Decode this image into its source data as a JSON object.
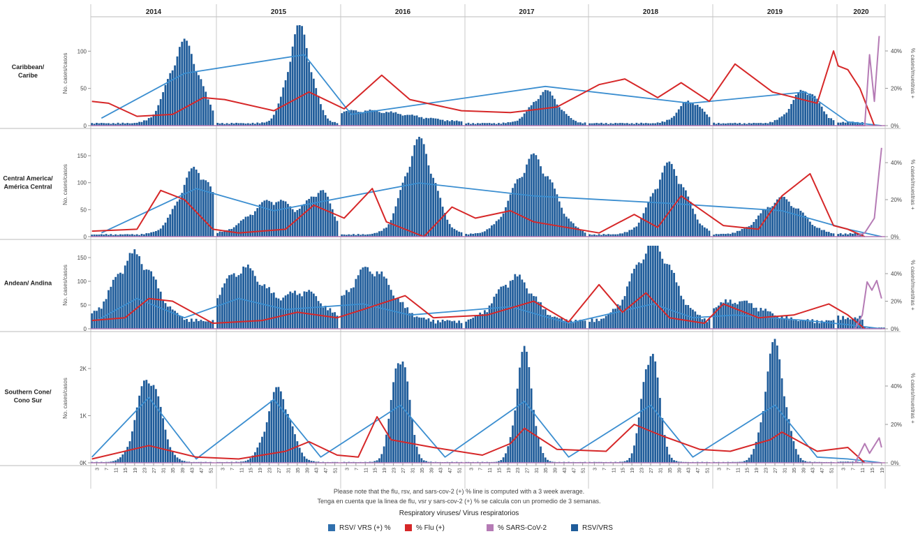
{
  "chart_data": {
    "type": "bar",
    "years": [
      "2014",
      "2015",
      "2016",
      "2017",
      "2018",
      "2019",
      "2020"
    ],
    "week_tick_labels": [
      "3",
      "7",
      "11",
      "15",
      "19",
      "23",
      "27",
      "31",
      "35",
      "39",
      "43",
      "47",
      "51"
    ],
    "week_tick_labels_2020": [
      "3",
      "7",
      "11",
      "15",
      "19"
    ],
    "left_axis_label": "No. cases/casos",
    "right_axis_label": "% cases/muestras +",
    "legend_title": "Respiratory viruses/ Virus respiratorios",
    "legend": [
      {
        "name": "RSV/ VRS (+) %",
        "color": "#2f6fad"
      },
      {
        "name": "% Flu (+)",
        "color": "#d62728"
      },
      {
        "name": "% SARS-CoV-2",
        "color": "#b57bb5"
      },
      {
        "name": "RSV/VRS",
        "color": "#1f5c9a"
      }
    ],
    "colors": {
      "bars": "#1f5c9a",
      "rsv_pct": "#3b8ed0",
      "flu": "#d62728",
      "sars": "#b57bb5"
    },
    "notes": [
      "Please note that the flu, rsv, and sars-cov-2 (+) % line is computed with a 3 week average.",
      "Tenga en cuenta que la linea de flu, vsr y sars-cov-2 (+) % se calcula con un promedio de 3 semanas."
    ],
    "panels": [
      {
        "label": [
          "Caribbean/",
          "Caribe"
        ],
        "y_ticks": [
          "0",
          "50",
          "100"
        ],
        "y_tick_values": [
          0,
          50,
          100
        ],
        "y_max": 135,
        "pct_ticks": [
          "0%",
          "20%",
          "40%"
        ],
        "bar_peaks": [
          {
            "year": 0,
            "week": 40,
            "value": 113,
            "width": 9
          },
          {
            "year": 1,
            "week": 36,
            "value": 135,
            "width": 7
          },
          {
            "year": 2,
            "week": 10,
            "value": 18,
            "width": 30
          },
          {
            "year": 3,
            "week": 35,
            "value": 45,
            "width": 8
          },
          {
            "year": 4,
            "week": 44,
            "value": 32,
            "width": 7
          },
          {
            "year": 5,
            "week": 40,
            "value": 48,
            "width": 8
          }
        ],
        "bar_base": 4,
        "rsv_pct": [
          [
            0,
            5,
            4
          ],
          [
            0,
            40,
            28
          ],
          [
            1,
            38,
            38
          ],
          [
            2,
            5,
            6
          ],
          [
            3,
            35,
            21
          ],
          [
            4,
            44,
            12
          ],
          [
            5,
            40,
            18
          ],
          [
            6,
            5,
            2
          ],
          [
            6,
            19,
            0
          ]
        ],
        "flu_pct": [
          [
            0,
            1,
            13
          ],
          [
            0,
            8,
            12
          ],
          [
            0,
            20,
            5
          ],
          [
            0,
            35,
            6
          ],
          [
            0,
            48,
            15
          ],
          [
            1,
            4,
            14
          ],
          [
            1,
            25,
            8
          ],
          [
            1,
            40,
            18
          ],
          [
            2,
            2,
            9
          ],
          [
            2,
            18,
            27
          ],
          [
            2,
            30,
            14
          ],
          [
            2,
            52,
            8
          ],
          [
            3,
            20,
            7
          ],
          [
            3,
            40,
            10
          ],
          [
            4,
            5,
            22
          ],
          [
            4,
            16,
            25
          ],
          [
            4,
            30,
            15
          ],
          [
            4,
            40,
            23
          ],
          [
            4,
            52,
            13
          ],
          [
            5,
            10,
            33
          ],
          [
            5,
            26,
            18
          ],
          [
            5,
            45,
            12
          ],
          [
            5,
            52,
            40
          ],
          [
            6,
            1,
            32
          ],
          [
            6,
            5,
            30
          ],
          [
            6,
            10,
            20
          ],
          [
            6,
            16,
            0
          ]
        ],
        "sars_pct": [
          [
            6,
            8,
            0
          ],
          [
            6,
            12,
            0
          ],
          [
            6,
            14,
            38
          ],
          [
            6,
            16,
            13
          ],
          [
            6,
            18,
            48
          ]
        ]
      },
      {
        "label": [
          "Central America/",
          "América Central"
        ],
        "y_ticks": [
          "0",
          "50",
          "100",
          "150"
        ],
        "y_tick_values": [
          0,
          50,
          100,
          150
        ],
        "y_max": 185,
        "pct_ticks": [
          "0%",
          "20%",
          "40%"
        ],
        "bar_peaks": [
          {
            "year": 0,
            "week": 45,
            "value": 128,
            "width": 10
          },
          {
            "year": 1,
            "week": 25,
            "value": 68,
            "width": 14
          },
          {
            "year": 1,
            "week": 45,
            "value": 78,
            "width": 7
          },
          {
            "year": 2,
            "week": 34,
            "value": 182,
            "width": 9
          },
          {
            "year": 3,
            "week": 30,
            "value": 150,
            "width": 12
          },
          {
            "year": 4,
            "week": 35,
            "value": 135,
            "width": 10
          },
          {
            "year": 5,
            "week": 30,
            "value": 70,
            "width": 12
          }
        ],
        "bar_base": 5,
        "rsv_pct": [
          [
            0,
            5,
            2
          ],
          [
            0,
            45,
            26
          ],
          [
            1,
            25,
            14
          ],
          [
            2,
            34,
            29
          ],
          [
            3,
            30,
            22
          ],
          [
            4,
            35,
            18
          ],
          [
            5,
            30,
            14
          ],
          [
            6,
            5,
            4
          ],
          [
            6,
            19,
            0
          ]
        ],
        "flu_pct": [
          [
            0,
            1,
            3
          ],
          [
            0,
            20,
            4
          ],
          [
            0,
            30,
            25
          ],
          [
            0,
            40,
            20
          ],
          [
            0,
            52,
            4
          ],
          [
            1,
            10,
            2
          ],
          [
            1,
            30,
            4
          ],
          [
            1,
            42,
            17
          ],
          [
            2,
            2,
            10
          ],
          [
            2,
            14,
            26
          ],
          [
            2,
            20,
            8
          ],
          [
            2,
            36,
            0
          ],
          [
            2,
            48,
            16
          ],
          [
            3,
            5,
            10
          ],
          [
            3,
            20,
            14
          ],
          [
            3,
            30,
            8
          ],
          [
            4,
            5,
            2
          ],
          [
            4,
            20,
            12
          ],
          [
            4,
            30,
            5
          ],
          [
            4,
            40,
            22
          ],
          [
            5,
            5,
            6
          ],
          [
            5,
            20,
            4
          ],
          [
            5,
            30,
            22
          ],
          [
            5,
            42,
            34
          ],
          [
            5,
            52,
            6
          ],
          [
            6,
            5,
            4
          ],
          [
            6,
            12,
            0
          ]
        ],
        "sars_pct": [
          [
            6,
            8,
            0
          ],
          [
            6,
            12,
            2
          ],
          [
            6,
            16,
            10
          ],
          [
            6,
            19,
            48
          ]
        ]
      },
      {
        "label": [
          "Andean/ Andina"
        ],
        "y_ticks": [
          "0",
          "50",
          "100",
          "150"
        ],
        "y_tick_values": [
          0,
          50,
          100,
          150
        ],
        "y_max": 175,
        "pct_ticks": [
          "0%",
          "20%",
          "40%"
        ],
        "bar_peaks": [
          {
            "year": 0,
            "week": 19,
            "value": 148,
            "width": 12
          },
          {
            "year": 1,
            "week": 12,
            "value": 118,
            "width": 13
          },
          {
            "year": 1,
            "week": 38,
            "value": 65,
            "width": 11
          },
          {
            "year": 2,
            "week": 13,
            "value": 118,
            "width": 13
          },
          {
            "year": 3,
            "week": 22,
            "value": 98,
            "width": 11
          },
          {
            "year": 4,
            "week": 28,
            "value": 172,
            "width": 12
          },
          {
            "year": 5,
            "week": 10,
            "value": 45,
            "width": 16
          }
        ],
        "bar_base": 20,
        "rsv_pct": [
          [
            0,
            3,
            6
          ],
          [
            0,
            20,
            22
          ],
          [
            0,
            40,
            8
          ],
          [
            1,
            10,
            22
          ],
          [
            1,
            30,
            14
          ],
          [
            2,
            10,
            18
          ],
          [
            2,
            30,
            10
          ],
          [
            3,
            20,
            16
          ],
          [
            3,
            45,
            4
          ],
          [
            4,
            28,
            18
          ],
          [
            4,
            45,
            8
          ],
          [
            5,
            10,
            10
          ],
          [
            5,
            40,
            6
          ],
          [
            6,
            5,
            3
          ],
          [
            6,
            19,
            0
          ]
        ],
        "flu_pct": [
          [
            0,
            1,
            6
          ],
          [
            0,
            15,
            8
          ],
          [
            0,
            25,
            22
          ],
          [
            0,
            35,
            20
          ],
          [
            0,
            52,
            4
          ],
          [
            1,
            20,
            6
          ],
          [
            1,
            35,
            12
          ],
          [
            1,
            52,
            8
          ],
          [
            2,
            10,
            14
          ],
          [
            2,
            28,
            24
          ],
          [
            2,
            40,
            8
          ],
          [
            3,
            10,
            10
          ],
          [
            3,
            30,
            20
          ],
          [
            3,
            45,
            5
          ],
          [
            4,
            5,
            32
          ],
          [
            4,
            15,
            12
          ],
          [
            4,
            25,
            26
          ],
          [
            4,
            35,
            8
          ],
          [
            4,
            50,
            4
          ],
          [
            5,
            5,
            18
          ],
          [
            5,
            20,
            8
          ],
          [
            5,
            35,
            10
          ],
          [
            5,
            50,
            18
          ],
          [
            6,
            5,
            10
          ],
          [
            6,
            12,
            0
          ]
        ],
        "sars_pct": [
          [
            6,
            8,
            0
          ],
          [
            6,
            11,
            10
          ],
          [
            6,
            13,
            34
          ],
          [
            6,
            15,
            28
          ],
          [
            6,
            17,
            35
          ],
          [
            6,
            19,
            22
          ]
        ]
      },
      {
        "label": [
          "Southern Cone/",
          "Cono Sur"
        ],
        "y_ticks": [
          "0K",
          "1K",
          "2K"
        ],
        "y_tick_values": [
          0,
          1000,
          2000
        ],
        "y_max": 2650,
        "pct_ticks": [
          "0%",
          "20%",
          "40%"
        ],
        "bar_peaks": [
          {
            "year": 0,
            "week": 25,
            "value": 1950,
            "width": 7
          },
          {
            "year": 1,
            "week": 27,
            "value": 1620,
            "width": 7
          },
          {
            "year": 2,
            "week": 26,
            "value": 2500,
            "width": 5
          },
          {
            "year": 3,
            "week": 26,
            "value": 2460,
            "width": 5
          },
          {
            "year": 4,
            "week": 27,
            "value": 2580,
            "width": 5
          },
          {
            "year": 5,
            "week": 27,
            "value": 2620,
            "width": 6
          }
        ],
        "bar_base": 20,
        "rsv_pct": [
          [
            0,
            1,
            3
          ],
          [
            0,
            25,
            34
          ],
          [
            0,
            45,
            2
          ],
          [
            1,
            25,
            33
          ],
          [
            1,
            45,
            3
          ],
          [
            2,
            26,
            30
          ],
          [
            2,
            45,
            3
          ],
          [
            3,
            26,
            32
          ],
          [
            3,
            45,
            3
          ],
          [
            4,
            27,
            30
          ],
          [
            4,
            45,
            3
          ],
          [
            5,
            27,
            30
          ],
          [
            5,
            45,
            3
          ],
          [
            6,
            5,
            2
          ],
          [
            6,
            19,
            0
          ]
        ],
        "flu_pct": [
          [
            0,
            1,
            2
          ],
          [
            0,
            25,
            9
          ],
          [
            0,
            45,
            3
          ],
          [
            1,
            10,
            2
          ],
          [
            1,
            30,
            6
          ],
          [
            1,
            40,
            11
          ],
          [
            1,
            52,
            4
          ],
          [
            2,
            8,
            3
          ],
          [
            2,
            16,
            24
          ],
          [
            2,
            22,
            12
          ],
          [
            2,
            40,
            8
          ],
          [
            3,
            8,
            4
          ],
          [
            3,
            20,
            10
          ],
          [
            3,
            26,
            18
          ],
          [
            3,
            40,
            7
          ],
          [
            4,
            8,
            6
          ],
          [
            4,
            20,
            20
          ],
          [
            4,
            32,
            14
          ],
          [
            4,
            48,
            7
          ],
          [
            5,
            8,
            6
          ],
          [
            5,
            25,
            12
          ],
          [
            5,
            30,
            16
          ],
          [
            5,
            45,
            6
          ],
          [
            6,
            5,
            8
          ],
          [
            6,
            12,
            0
          ]
        ],
        "sars_pct": [
          [
            6,
            8,
            0
          ],
          [
            6,
            12,
            10
          ],
          [
            6,
            14,
            5
          ],
          [
            6,
            18,
            13
          ],
          [
            6,
            19,
            8
          ]
        ]
      }
    ]
  }
}
